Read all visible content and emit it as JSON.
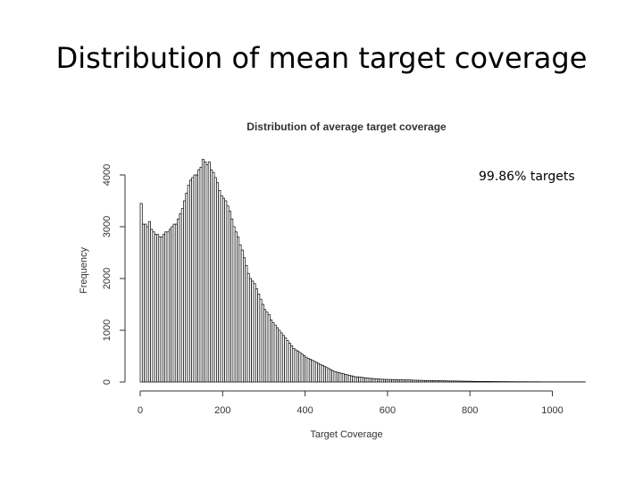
{
  "slide": {
    "title": "Distribution of mean target coverage",
    "annotation": "99.86% targets"
  },
  "chart_data": {
    "type": "bar",
    "title": "Distribution of average target coverage",
    "xlabel": "Target Coverage",
    "ylabel": "Frequency",
    "xlim": [
      0,
      1040
    ],
    "ylim": [
      0,
      4000
    ],
    "x_ticks": [
      0,
      200,
      400,
      600,
      800,
      1000
    ],
    "y_ticks": [
      0,
      1000,
      2000,
      3000,
      4000
    ],
    "bin_width": 5,
    "grid": false,
    "bar_color": "#ffffff",
    "edge_color": "#000000",
    "values": [
      3450,
      3050,
      3050,
      3000,
      3100,
      2950,
      2900,
      2850,
      2850,
      2800,
      2800,
      2850,
      2900,
      2900,
      2950,
      3000,
      3050,
      3050,
      3150,
      3250,
      3350,
      3500,
      3650,
      3800,
      3900,
      3950,
      4000,
      4000,
      4100,
      4150,
      4300,
      4250,
      4200,
      4250,
      4100,
      4050,
      3950,
      3850,
      3700,
      3600,
      3550,
      3500,
      3400,
      3300,
      3150,
      3000,
      2900,
      2800,
      2650,
      2550,
      2400,
      2250,
      2100,
      2000,
      1950,
      1900,
      1800,
      1700,
      1600,
      1500,
      1400,
      1350,
      1300,
      1200,
      1150,
      1100,
      1050,
      1000,
      950,
      900,
      850,
      800,
      750,
      700,
      650,
      620,
      600,
      570,
      540,
      510,
      480,
      460,
      440,
      420,
      400,
      380,
      360,
      340,
      320,
      300,
      280,
      260,
      240,
      220,
      200,
      190,
      180,
      170,
      160,
      150,
      140,
      130,
      120,
      110,
      100,
      100,
      95,
      90,
      85,
      80,
      75,
      70,
      70,
      65,
      60,
      60,
      55,
      55,
      50,
      50,
      50,
      48,
      46,
      45,
      44,
      43,
      42,
      41,
      40,
      40,
      40,
      38,
      36,
      35,
      34,
      33,
      32,
      31,
      30,
      30,
      30,
      28,
      27,
      26,
      25,
      25,
      24,
      23,
      22,
      21,
      20,
      20,
      20,
      19,
      18,
      17,
      16,
      15,
      15,
      15,
      14,
      13,
      12,
      12,
      11,
      11,
      10,
      10,
      10,
      10,
      9,
      9,
      8,
      8,
      8,
      7,
      7,
      7,
      6,
      6,
      6,
      6,
      5,
      5,
      5,
      5,
      5,
      5,
      4,
      4,
      4,
      4,
      4,
      4,
      3,
      3,
      3,
      3,
      3,
      3,
      3,
      3,
      3,
      3,
      3,
      3,
      3,
      3,
      3,
      3,
      3,
      3,
      3,
      3,
      3,
      3
    ]
  }
}
